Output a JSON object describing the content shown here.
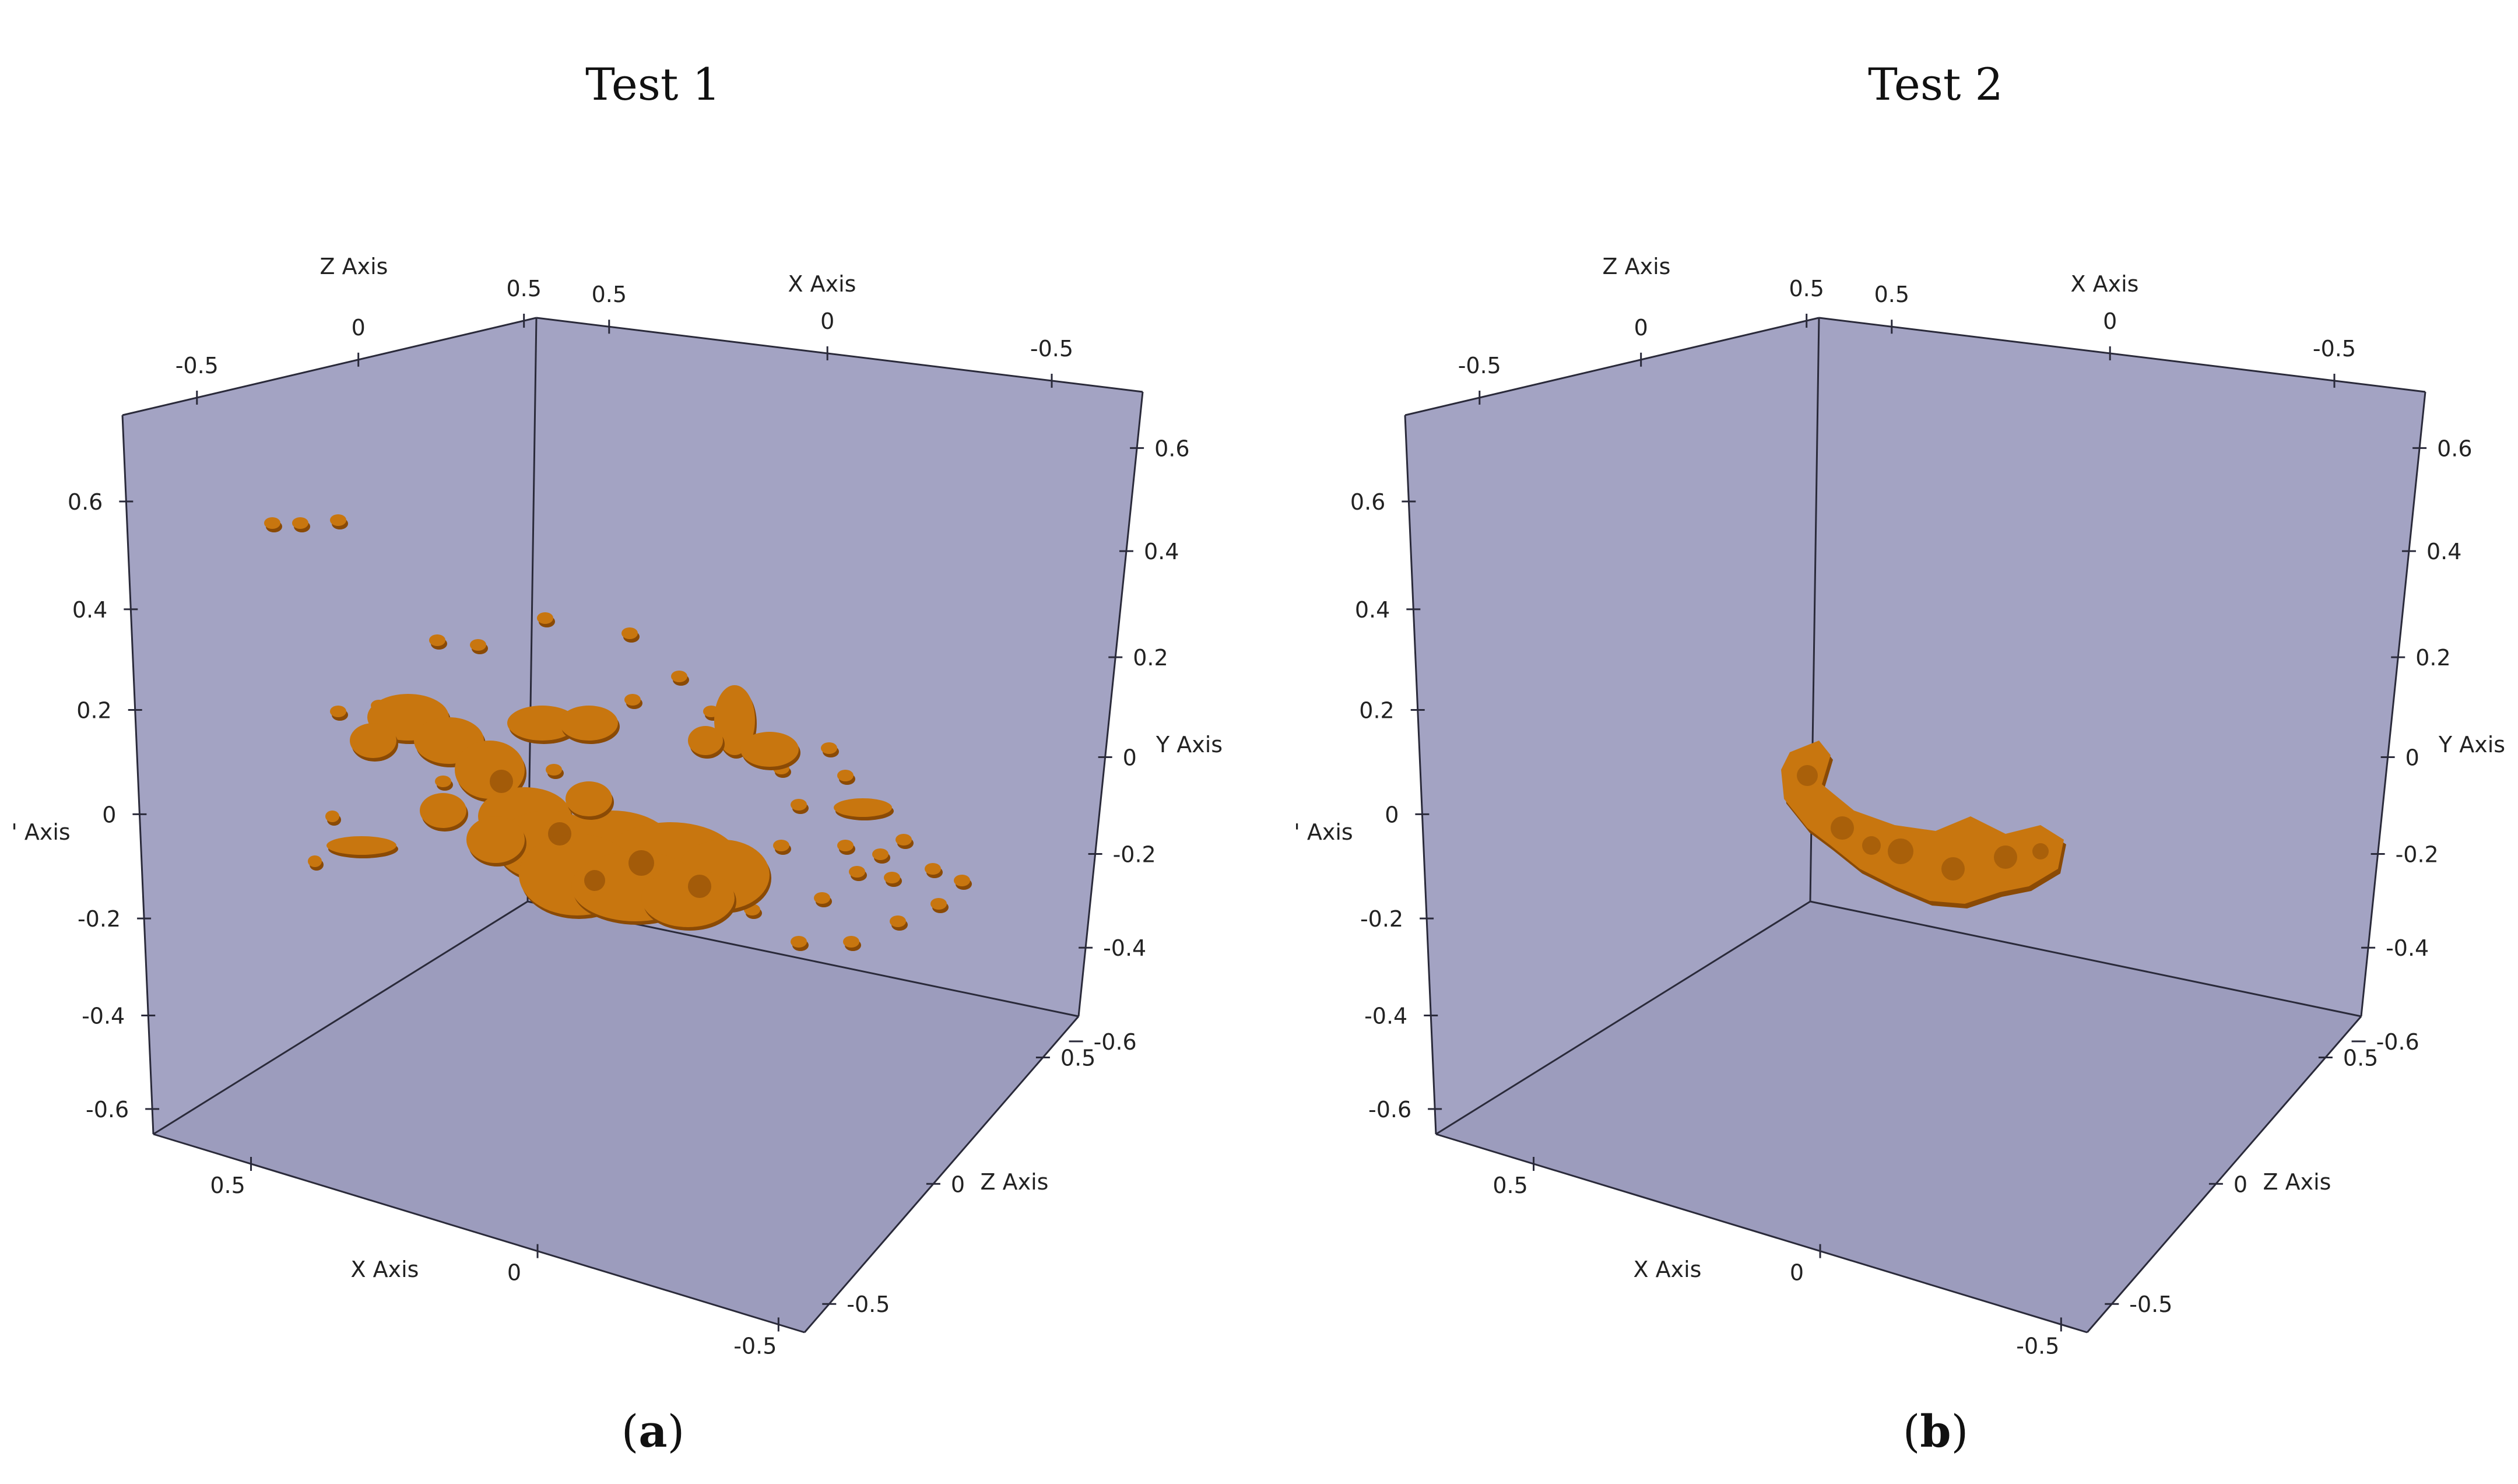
{
  "figure": {
    "panels": [
      {
        "title": "Test 1",
        "caption_letter": "a"
      },
      {
        "title": "Test 2",
        "caption_letter": "b"
      }
    ]
  },
  "colors": {
    "box_face": "#a3a3c3",
    "box_face_dark": "#9c9cbd",
    "structure": "#c8760f",
    "structure_shadow": "#8a4a05"
  },
  "chart_data": [
    {
      "type": "scatter",
      "title": "Test 1",
      "xlabel": "X Axis",
      "ylabel": "Y Axis",
      "zlabel": "Z Axis",
      "xlim": [
        -0.5,
        0.5
      ],
      "ylim": [
        -0.6,
        0.6
      ],
      "zlim": [
        -0.5,
        0.5
      ],
      "x_ticks": [
        "0.5",
        "0",
        "-0.5"
      ],
      "y_ticks_left": [
        "0.6",
        "0.4",
        "0.2",
        "0",
        "-0.2",
        "-0.4",
        "-0.6"
      ],
      "y_ticks_right": [
        "0.6",
        "0.4",
        "0.2",
        "0",
        "-0.2",
        "-0.4",
        "-0.6"
      ],
      "z_ticks_top": [
        "-0.5",
        "0",
        "0.5"
      ],
      "z_ticks_right": [
        "0.5",
        "0",
        "-0.5"
      ],
      "x_ticks_top": [
        "0.5",
        "0",
        "-0.5"
      ],
      "y_label_partial": "' Axis",
      "structure": "scattered clusters"
    },
    {
      "type": "scatter",
      "title": "Test 2",
      "xlabel": "X Axis",
      "ylabel": "Y Axis",
      "zlabel": "Z Axis",
      "xlim": [
        -0.5,
        0.5
      ],
      "ylim": [
        -0.6,
        0.6
      ],
      "zlim": [
        -0.5,
        0.5
      ],
      "x_ticks": [
        "0.5",
        "0",
        "-0.5"
      ],
      "y_ticks_left": [
        "0.6",
        "0.4",
        "0.2",
        "0",
        "-0.2",
        "-0.4",
        "-0.6"
      ],
      "y_ticks_right": [
        "0.6",
        "0.4",
        "0.2",
        "0",
        "-0.2",
        "-0.4",
        "-0.6"
      ],
      "z_ticks_top": [
        "-0.5",
        "0",
        "0.5"
      ],
      "z_ticks_right": [
        "0.5",
        "0",
        "-0.5"
      ],
      "x_ticks_top": [
        "0.5",
        "0",
        "-0.5"
      ],
      "y_label_partial": "' Axis",
      "structure": "single connected body"
    }
  ]
}
